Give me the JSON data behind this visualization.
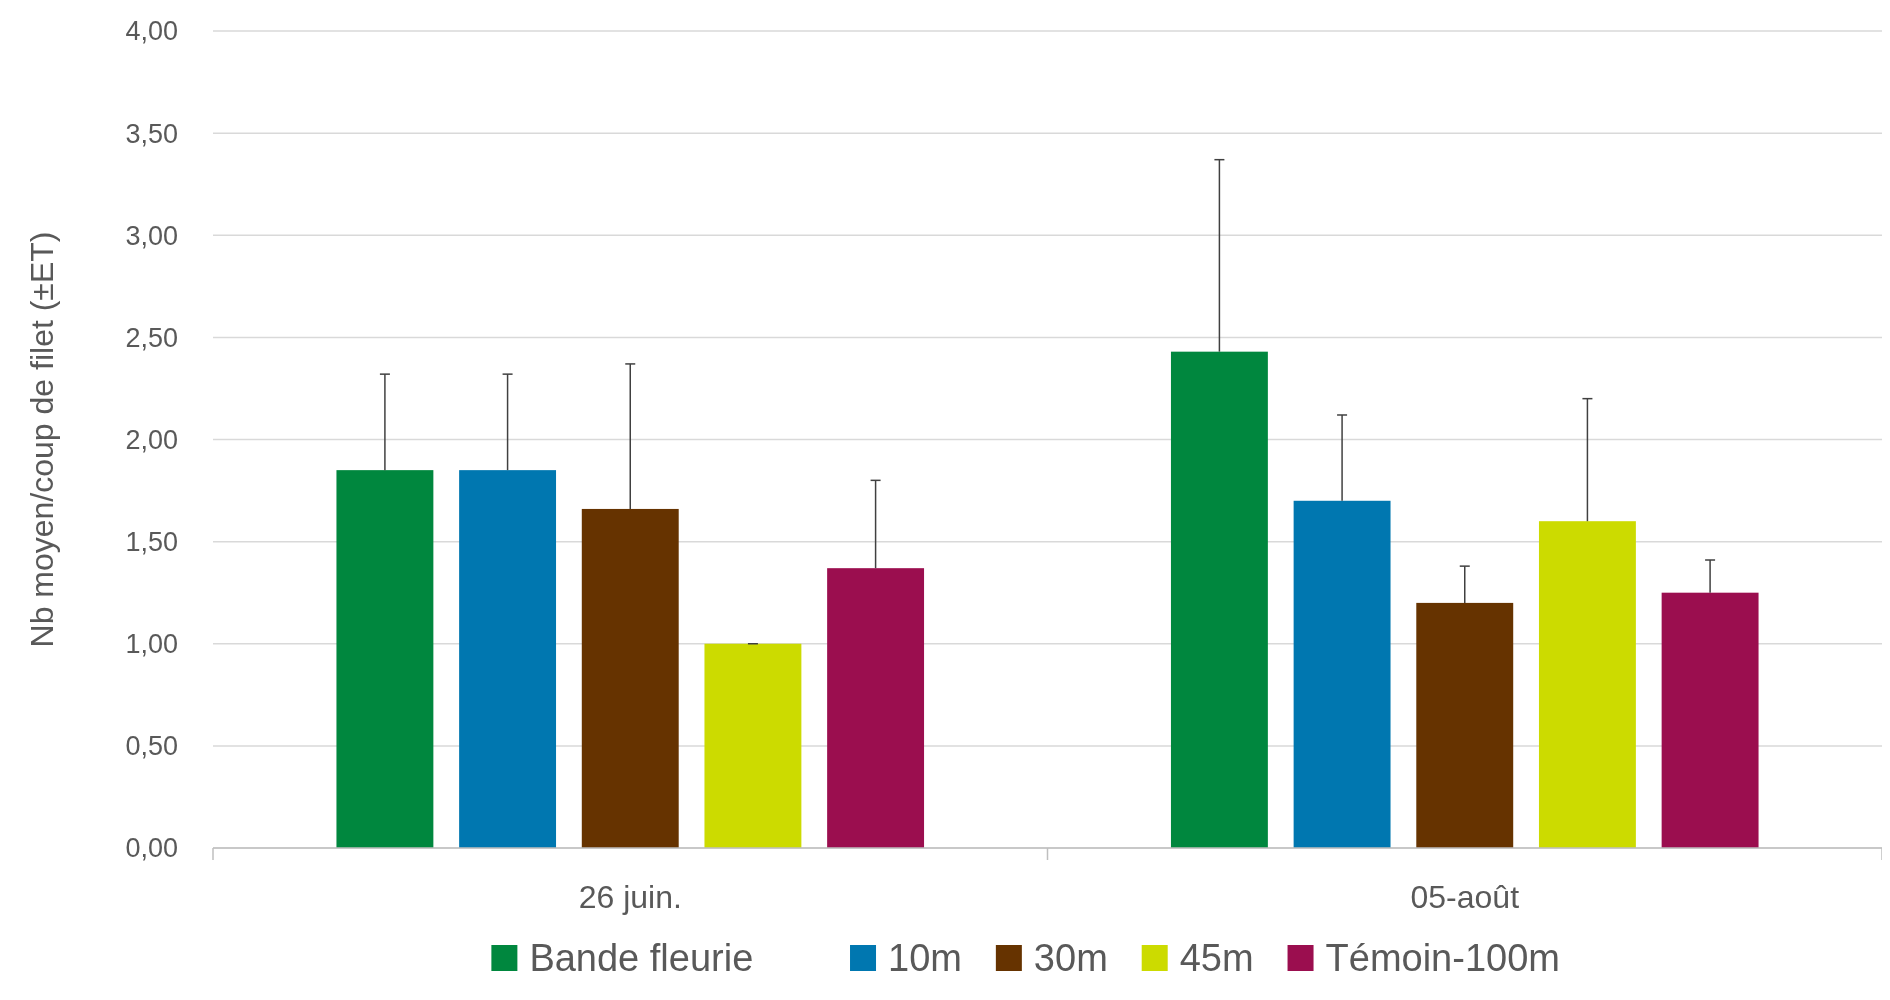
{
  "chart_data": {
    "type": "bar",
    "ylabel": "Nb moyen/coup de filet (±ET)",
    "categories": [
      "26 juin.",
      "05-août"
    ],
    "series": [
      {
        "name": "Bande fleurie",
        "color": "#00873e",
        "values": [
          1.85,
          2.43
        ],
        "errors": [
          [
            1.85,
            2.32
          ],
          [
            2.43,
            3.37
          ]
        ]
      },
      {
        "name": "10m",
        "color": "#0077b0",
        "values": [
          1.85,
          1.7
        ],
        "errors": [
          [
            1.85,
            2.32
          ],
          [
            1.7,
            2.12
          ]
        ]
      },
      {
        "name": "30m",
        "color": "#663300",
        "values": [
          1.66,
          1.2
        ],
        "errors": [
          [
            1.66,
            2.37
          ],
          [
            1.2,
            1.38
          ]
        ]
      },
      {
        "name": "45m",
        "color": "#ccdb00",
        "values": [
          1.0,
          1.6
        ],
        "errors": [
          [
            1.0,
            1.0
          ],
          [
            1.6,
            2.2
          ]
        ]
      },
      {
        "name": "Témoin-100m",
        "color": "#9b0e4f",
        "values": [
          1.37,
          1.25
        ],
        "errors": [
          [
            1.37,
            1.8
          ],
          [
            1.25,
            1.41
          ]
        ]
      }
    ],
    "ylim": [
      0,
      4
    ],
    "yticks": [
      {
        "value": 0,
        "label": "0,00"
      },
      {
        "value": 0.5,
        "label": "0,50"
      },
      {
        "value": 1,
        "label": "1,00"
      },
      {
        "value": 1.5,
        "label": "1,50"
      },
      {
        "value": 2,
        "label": "2,00"
      },
      {
        "value": 2.5,
        "label": "2,50"
      },
      {
        "value": 3,
        "label": "3,00"
      },
      {
        "value": 3.5,
        "label": "3,50"
      },
      {
        "value": 4,
        "label": "4,00"
      }
    ],
    "grid": "y",
    "legend": "bottom"
  }
}
